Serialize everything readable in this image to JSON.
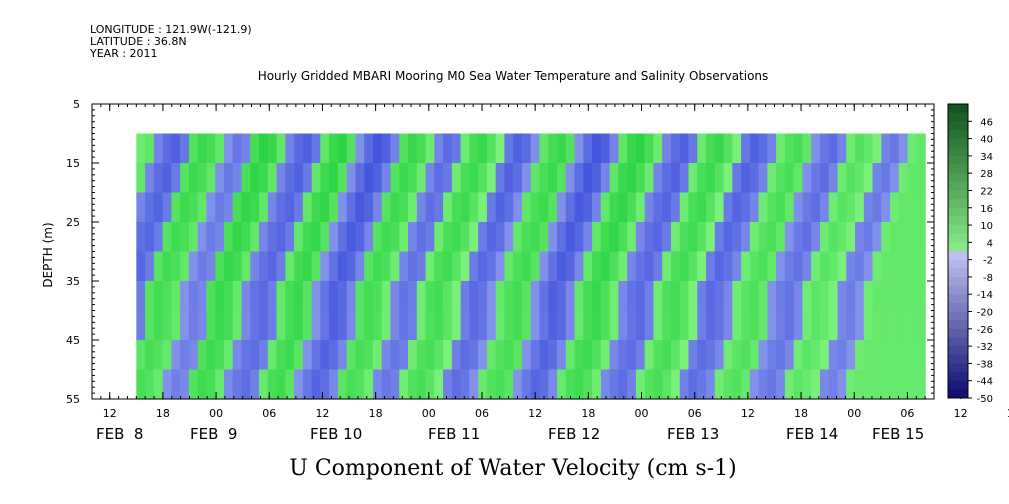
{
  "header": {
    "longitude": "LONGITUDE : 121.9W(-121.9)",
    "latitude": "LATITUDE : 36.8N",
    "year": "YEAR : 2011",
    "title": "Hourly Gridded MBARI Mooring M0 Sea Water Temperature and Salinity Observations"
  },
  "chart_data": {
    "type": "heatmap",
    "title": "Hourly Gridded MBARI Mooring M0 Sea Water Temperature and Salinity Observations",
    "xlabel": "",
    "ylabel": "DEPTH (m)",
    "footer_label": "U Component of Water Velocity (cm s-1)",
    "x_hour_ticks": [
      "12",
      "18",
      "00",
      "06",
      "12",
      "18",
      "00",
      "06",
      "12",
      "18",
      "00",
      "06",
      "12",
      "18",
      "00",
      "06",
      "12",
      "18",
      "00",
      "06",
      "12",
      "18",
      "00",
      "06",
      "12",
      "18",
      "00",
      "06",
      "12",
      "18",
      "00",
      "06"
    ],
    "x_day_labels": [
      "FEB  8",
      "FEB  9",
      "FEB 10",
      "FEB 11",
      "FEB 12",
      "FEB 13",
      "FEB 14",
      "FEB 15"
    ],
    "x_range_hours_from_feb8_00": [
      10,
      105
    ],
    "data_x_range_hours_from_feb8_00": [
      15,
      104
    ],
    "y_ticks": [
      5,
      15,
      25,
      35,
      45,
      55
    ],
    "y_range": [
      5,
      55
    ],
    "y_inverted": true,
    "data_depth_range": [
      10,
      55
    ],
    "colorbar": {
      "levels": [
        46,
        40,
        34,
        28,
        22,
        16,
        10,
        4,
        -2,
        -8,
        -14,
        -20,
        -26,
        -32,
        -38,
        -44,
        -50
      ],
      "range": [
        -50,
        52
      ]
    },
    "column_values": [
      2,
      4,
      -4,
      -8,
      -10,
      -6,
      6,
      10,
      8,
      4,
      -2,
      -6,
      -4,
      8,
      12,
      10,
      4,
      -4,
      -8,
      -10,
      -6,
      4,
      10,
      12,
      6,
      -2,
      -8,
      -12,
      -10,
      -4,
      6,
      10,
      8,
      2,
      -4,
      -8,
      -6,
      2,
      8,
      10,
      6,
      0,
      -6,
      -10,
      -8,
      -2,
      4,
      8,
      10,
      6,
      -2,
      -8,
      -12,
      -10,
      -4,
      4,
      10,
      12,
      8,
      2,
      -4,
      -8,
      -10,
      -6,
      2,
      8,
      10,
      6,
      0,
      -6,
      -10,
      -8,
      -4,
      2,
      6,
      8,
      4,
      -2,
      -6,
      -8,
      -4,
      2,
      6,
      4,
      0,
      -4,
      -6,
      -2,
      2,
      4
    ],
    "colors": {
      "negative": "#8c9aec",
      "negative_strong": "#2a3ed8",
      "positive": "#7af07a",
      "positive_strong": "#1fcf3a"
    }
  }
}
